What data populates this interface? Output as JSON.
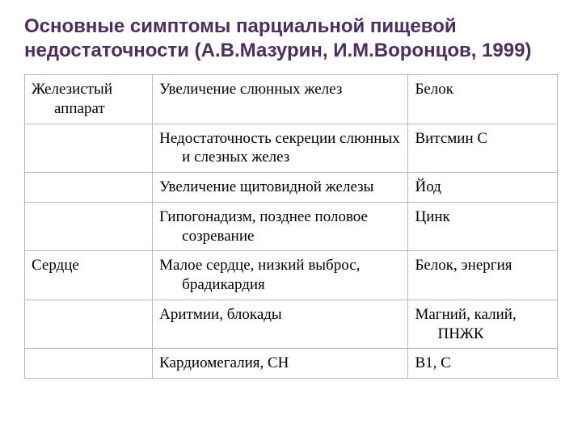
{
  "colors": {
    "title": "#4c2f5f",
    "border": "#b7b7b7",
    "text": "#000000",
    "background": "#ffffff"
  },
  "typography": {
    "title_font": "Arial",
    "title_fontsize": 24,
    "title_weight": "bold",
    "body_font": "Times New Roman",
    "body_fontsize": 19
  },
  "title": "Основные симптомы парциальной пищевой недостаточности\n(А.В.Мазурин, И.М.Воронцов, 1999)",
  "table": {
    "columns": [
      {
        "width_pct": 24
      },
      {
        "width_pct": 48
      },
      {
        "width_pct": 28
      }
    ],
    "rows": [
      {
        "c1": "Железистый аппарат",
        "c2": "Увеличение слюнных желез",
        "c3": "Белок"
      },
      {
        "c1": "",
        "c2": "Недостаточность секреции слюнных и слезных желез",
        "c3": "Витсмин С"
      },
      {
        "c1": "",
        "c2": "Увеличение щитовидной железы",
        "c3": "Йод"
      },
      {
        "c1": "",
        "c2": "Гипогонадизм, позднее половое созревание",
        "c3": "Цинк"
      },
      {
        "c1": "Сердце",
        "c2": "Малое сердце, низкий выброс, брадикардия",
        "c3": "Белок, энергия"
      },
      {
        "c1": "",
        "c2": "Аритмии, блокады",
        "c3": "Магний, калий, ПНЖК"
      },
      {
        "c1": "",
        "c2": "Кардиомегалия, СН",
        "c3": "В1, С"
      }
    ]
  }
}
